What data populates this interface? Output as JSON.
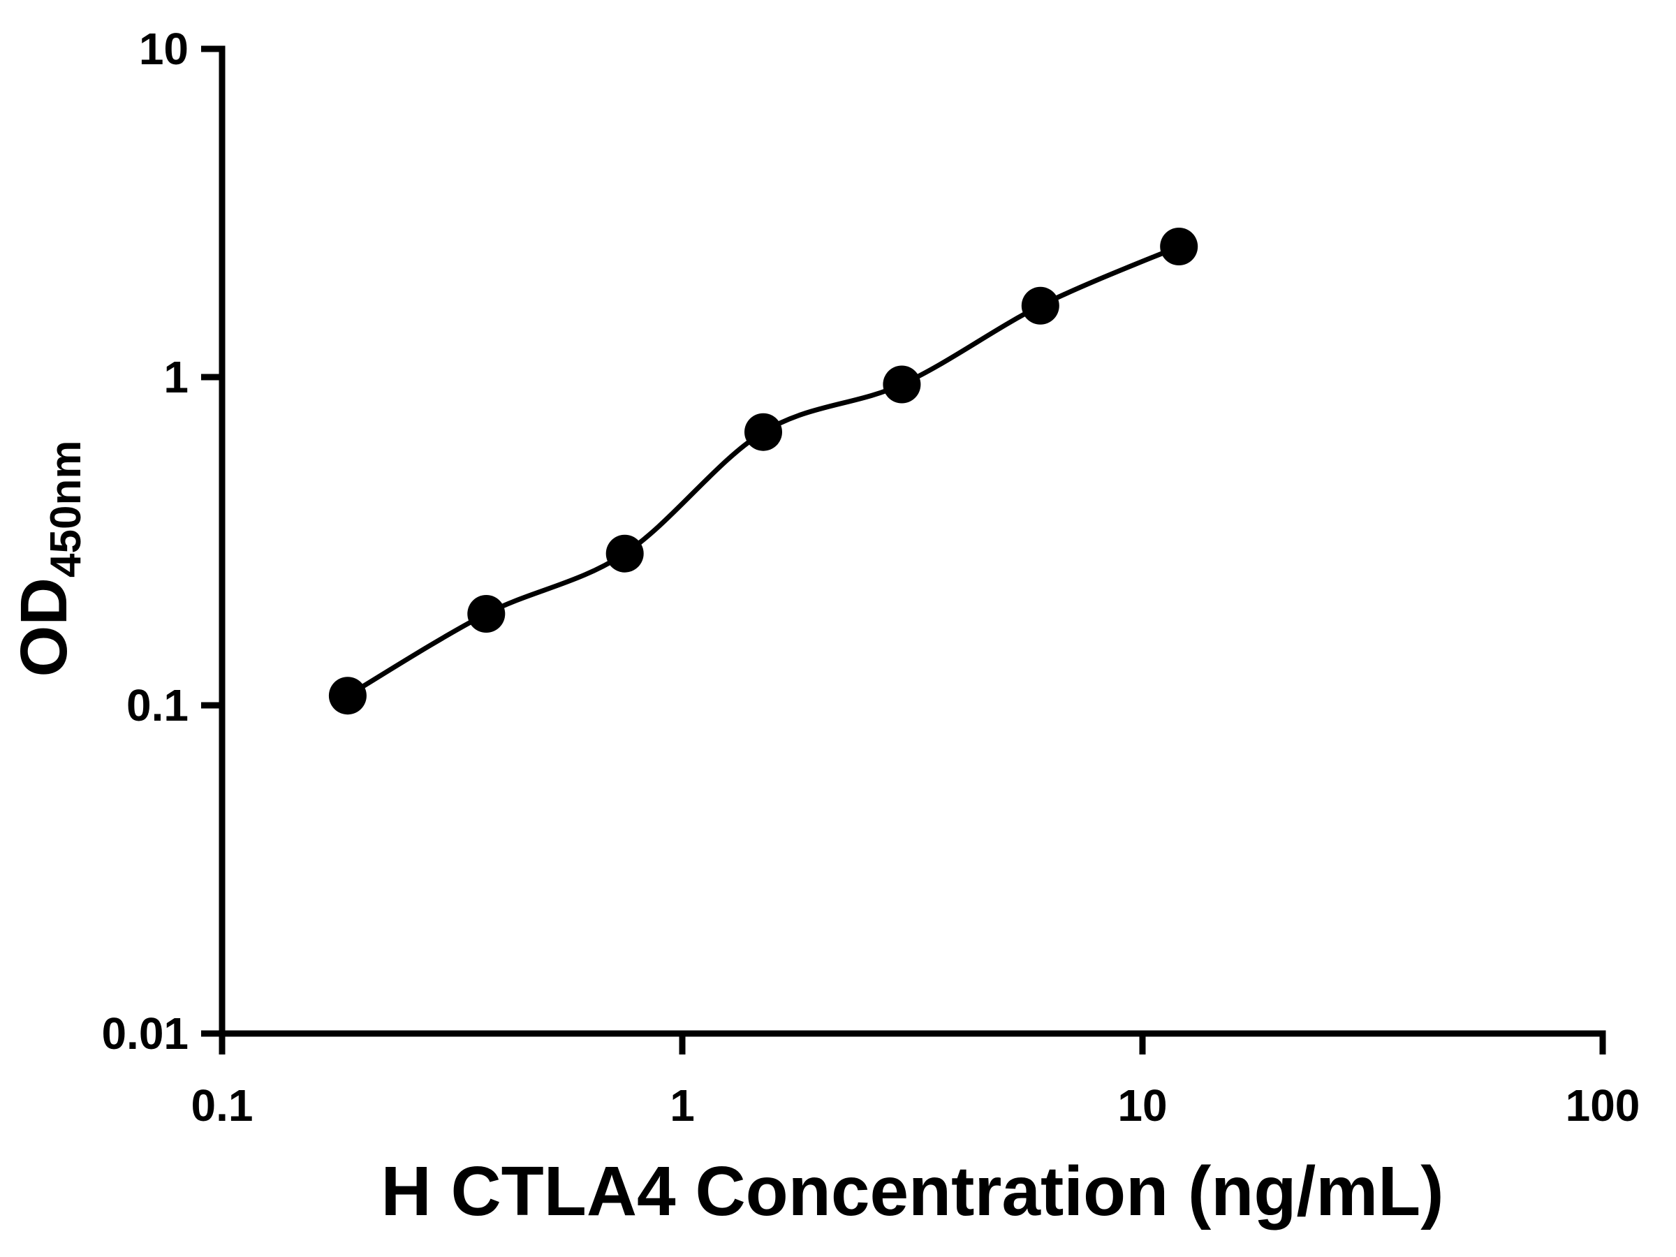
{
  "chart_data": {
    "type": "scatter",
    "title": "",
    "xlabel": "H CTLA4 Concentration (ng/mL)",
    "ylabel_main": "OD",
    "ylabel_sub": "450nm",
    "x_scale": "log",
    "y_scale": "log",
    "xlim": [
      0.1,
      100
    ],
    "ylim": [
      0.01,
      10
    ],
    "grid": false,
    "legend": "none",
    "x_ticks": [
      {
        "value": 0.1,
        "label": "0.1"
      },
      {
        "value": 1,
        "label": "1"
      },
      {
        "value": 10,
        "label": "10"
      },
      {
        "value": 100,
        "label": "100"
      }
    ],
    "y_ticks": [
      {
        "value": 0.01,
        "label": "0.01"
      },
      {
        "value": 0.1,
        "label": "0.1"
      },
      {
        "value": 1,
        "label": "1"
      },
      {
        "value": 10,
        "label": "10"
      }
    ],
    "series": [
      {
        "name": "standard-curve",
        "marker": "filled-circle",
        "line": "smooth-fit",
        "points": [
          {
            "x": 0.1875,
            "y": 0.107
          },
          {
            "x": 0.375,
            "y": 0.19
          },
          {
            "x": 0.75,
            "y": 0.29
          },
          {
            "x": 1.5,
            "y": 0.68
          },
          {
            "x": 3,
            "y": 0.95
          },
          {
            "x": 6,
            "y": 1.65
          },
          {
            "x": 12,
            "y": 2.5
          }
        ]
      }
    ],
    "marker_color": "#000000",
    "line_color": "#000000",
    "axis_color": "#000000",
    "background_color": "#ffffff"
  }
}
